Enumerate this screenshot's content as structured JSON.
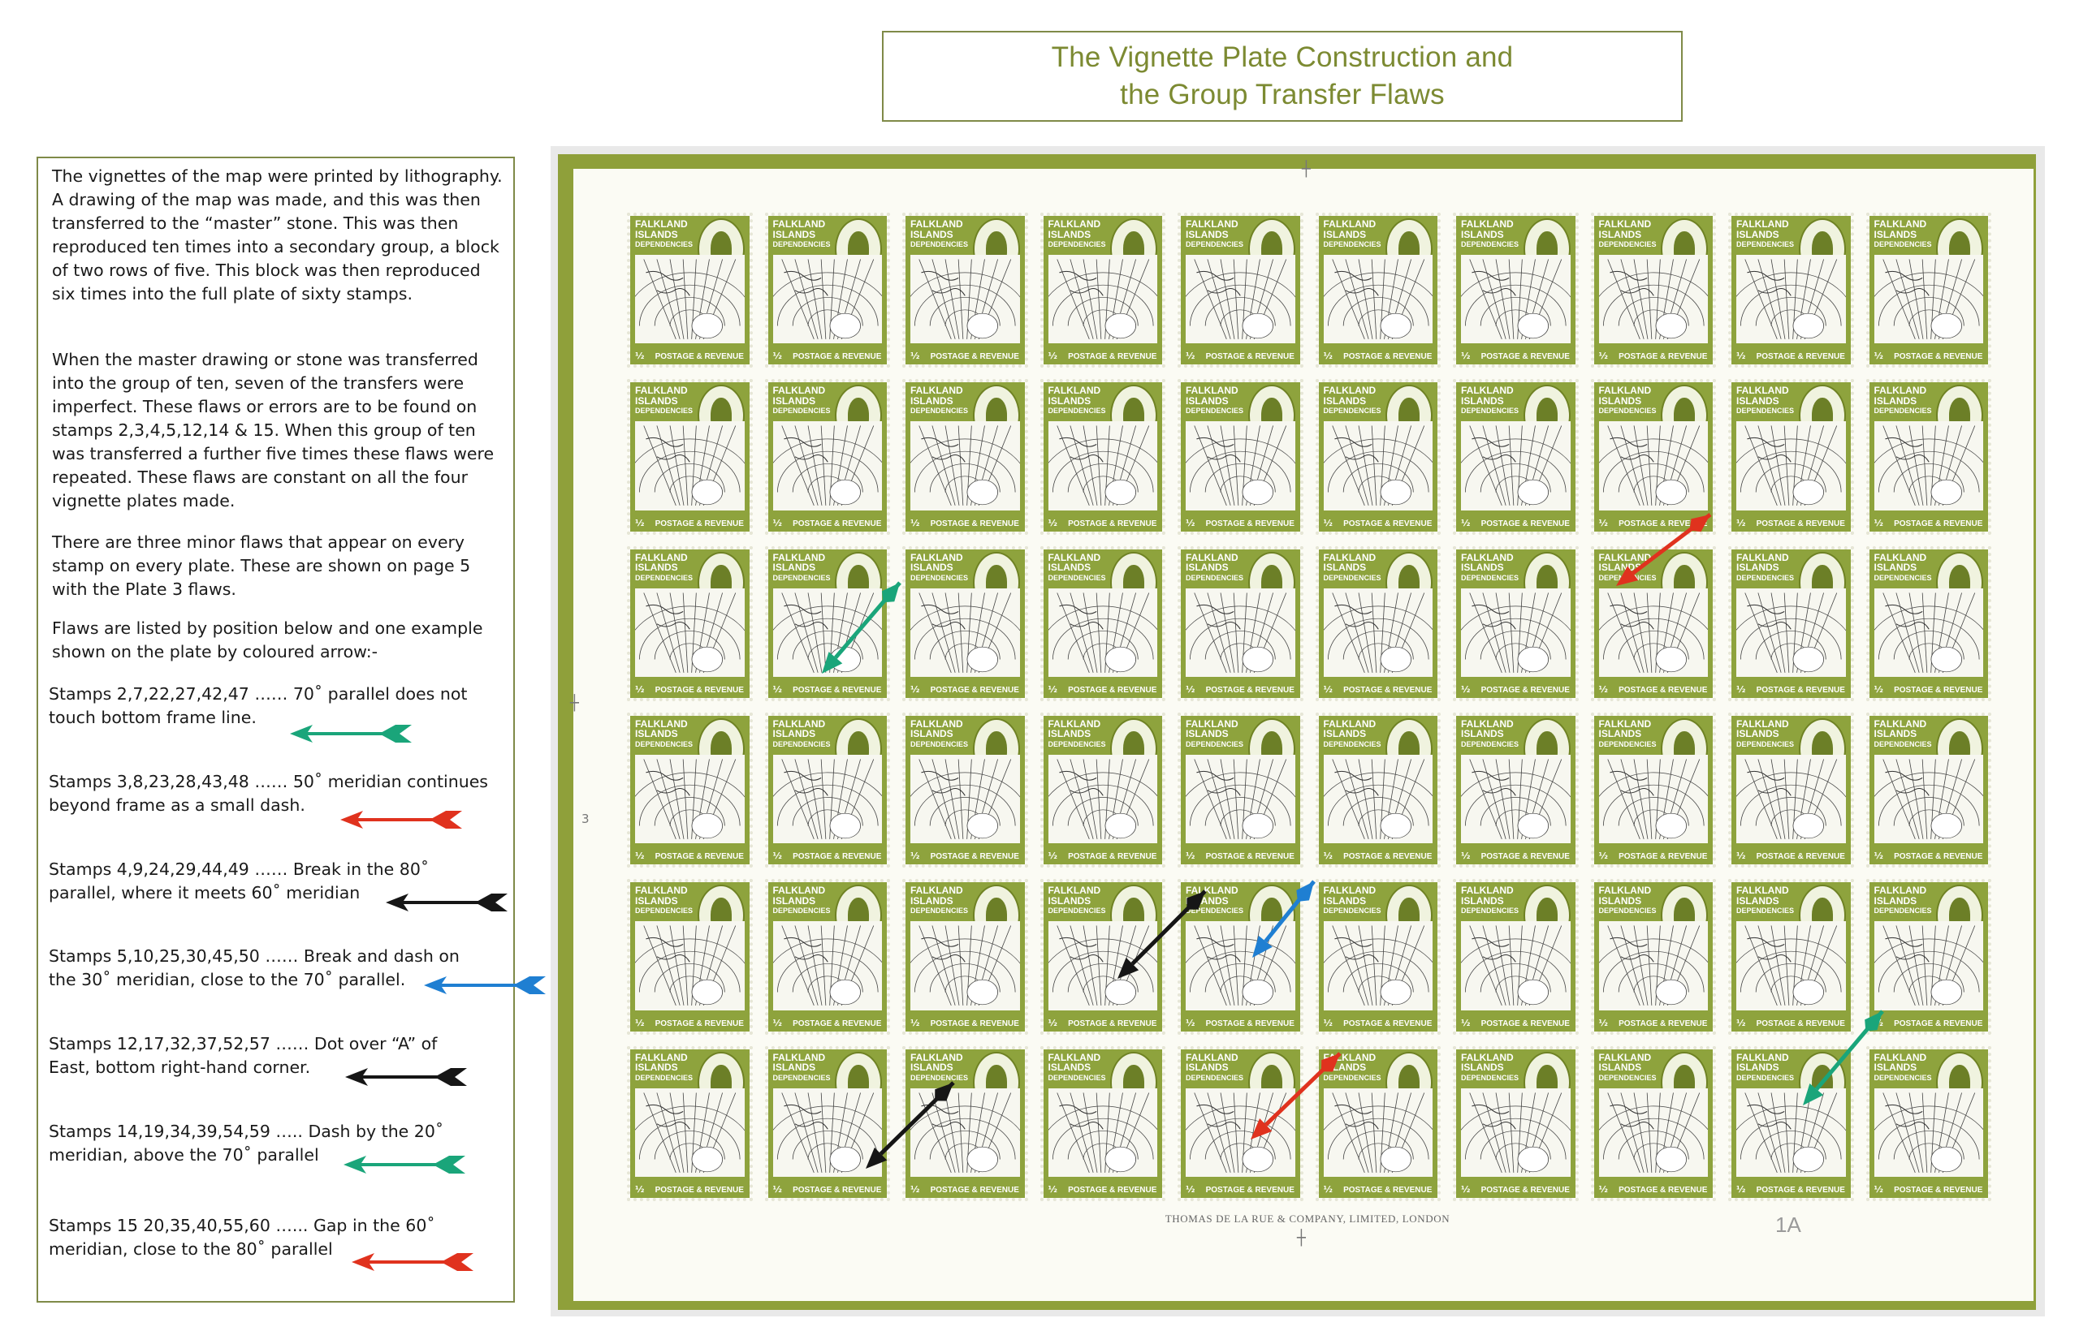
{
  "title": {
    "line1": "The Vignette Plate Construction and",
    "line2": "the Group Transfer Flaws"
  },
  "intro": [
    "The vignettes of the map were printed by lithography. A drawing of the map was made, and this was then transferred to the “master” stone. This was then reproduced ten times into a secondary group, a block of two rows of five. This block was then reproduced six times into the full plate of sixty stamps.",
    "When the master drawing or stone was transferred into the group of ten, seven of the transfers were imperfect. These flaws or errors are to be found on stamps 2,3,4,5,12,14 & 15. When this group of ten was transferred a further five times these flaws were repeated. These flaws are constant on all the four vignette plates made.",
    "There are three minor flaws that appear on every stamp on every plate. These are shown on page 5 with the Plate 3 flaws.",
    "Flaws are listed by position below and one example shown on the plate by coloured arrow:-"
  ],
  "flaws": [
    {
      "line1": "Stamps 2,7,22,27,42,47 …… 70˚ parallel does not",
      "line2": "touch bottom frame line.",
      "arrow_color": "#1aa57a"
    },
    {
      "line1": "Stamps 3,8,23,28,43,48 …… 50˚ meridian continues",
      "line2": "beyond frame as a small dash.",
      "arrow_color": "#e0321e"
    },
    {
      "line1": "Stamps 4,9,24,29,44,49 ……  Break in the 80˚",
      "line2": "parallel, where it meets 60˚ meridian",
      "arrow_color": "#161616"
    },
    {
      "line1": "Stamps 5,10,25,30,45,50 ……  Break and dash on",
      "line2": "the 30˚ meridian, close to the 70˚ parallel.",
      "arrow_color": "#1f7fd2"
    },
    {
      "line1": "Stamps 12,17,32,37,52,57 ……  Dot over “A” of",
      "line2": "East, bottom right-hand corner.",
      "arrow_color": "#161616"
    },
    {
      "line1": "Stamps 14,19,34,39,54,59 …..  Dash by the 20˚",
      "line2": "meridian, above the 70˚ parallel",
      "arrow_color": "#1aa57a"
    },
    {
      "line1": "Stamps 15 20,35,40,55,60 …...  Gap in the 60˚",
      "line2": "meridian, close to the 80˚ parallel",
      "arrow_color": "#e0321e"
    }
  ],
  "stamp": {
    "name_line1": "FALKLAND",
    "name_line2": "ISLANDS",
    "name_line3": "DEPENDENCIES",
    "value": "½",
    "footer": "POSTAGE & REVENUE",
    "ink_color": "#8ea33d"
  },
  "sheet": {
    "imprint": "THOMAS DE LA RUE & COMPANY, LIMITED, LONDON",
    "plate_number": "1A",
    "margin_number": "3",
    "rows": 6,
    "columns": 10
  }
}
